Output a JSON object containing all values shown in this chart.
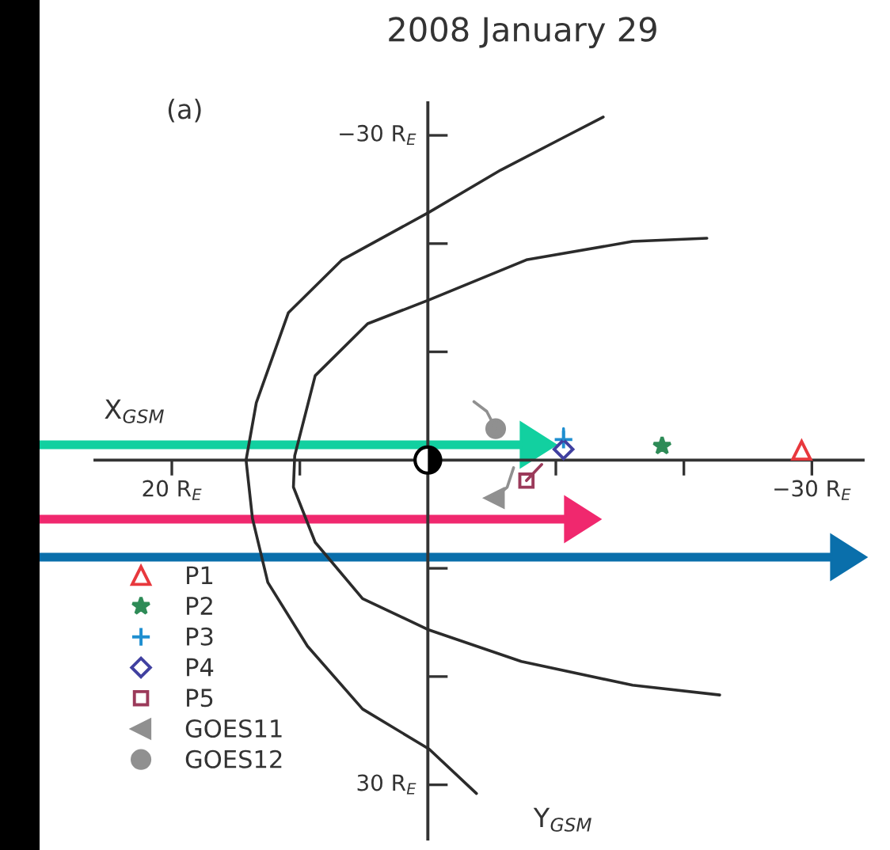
{
  "chart_data": {
    "type": "scatter",
    "title": "2008 January 29",
    "xlabel": "X$_{GSM}$",
    "ylabel": "Y$_{GSM}$",
    "annotations": [
      "(a)"
    ],
    "xlim": [
      26,
      -34
    ],
    "ylim": [
      35,
      -33
    ],
    "xticks": [
      {
        "value": 20,
        "label": "20 R$_{E}$"
      },
      {
        "value": 10,
        "label": null
      },
      {
        "value": -10,
        "label": null
      },
      {
        "value": -20,
        "label": null
      },
      {
        "value": -30,
        "label": "−30 R$_{E}$"
      }
    ],
    "yticks": [
      {
        "value": -30,
        "label": "−30 R$_{E}$"
      },
      {
        "value": -20,
        "label": null
      },
      {
        "value": -10,
        "label": null
      },
      {
        "value": 10,
        "label": null
      },
      {
        "value": 20,
        "label": null
      },
      {
        "value": 30,
        "label": "30 R$_{E}$"
      }
    ],
    "grid": false,
    "legend": "bottom left",
    "series": [
      {
        "type": "line",
        "color": "#2b2b2b",
        "x": [
          -13.7,
          -10.6,
          -5.7,
          -0.1,
          6.7,
          10.9,
          13.4,
          14.2,
          13.7,
          12.5,
          9.4,
          5.1,
          -0.1,
          -3.8
        ],
        "values": [
          -31.7,
          -29.8,
          -26.8,
          -22.9,
          -18.5,
          -13.6,
          -5.3,
          0,
          5.4,
          11.3,
          17.2,
          23.0,
          26.7,
          30.8
        ]
      },
      {
        "type": "line",
        "color": "#2b2b2b",
        "x": [
          -21.8,
          -16.0,
          -7.7,
          -0.1,
          4.7,
          8.8,
          10.4,
          10.5,
          8.8,
          5.1,
          -0.1,
          -7.3,
          -16.0,
          -22.8
        ],
        "values": [
          -20.5,
          -20.2,
          -18.5,
          -14.8,
          -12.6,
          -7.8,
          -0.4,
          2.5,
          7.6,
          12.8,
          15.7,
          18.6,
          20.8,
          21.7
        ]
      },
      {
        "type": "line",
        "color": "#909090",
        "x": [
          -3.6,
          -4.6,
          -5.3
        ],
        "values": [
          -5.4,
          -4.5,
          -2.9
        ]
      },
      {
        "type": "line",
        "color": "#909090",
        "x": [
          -6.7,
          -6.2,
          -5.2
        ],
        "values": [
          0.7,
          2.5,
          3.5
        ]
      },
      {
        "type": "line",
        "color": "#9b3a5a",
        "x": [
          -8.9,
          -7.7
        ],
        "values": [
          0.4,
          1.9
        ]
      },
      {
        "type": "line",
        "color": "#1f8fd0",
        "x": [
          -10.6,
          -10.6
        ],
        "values": [
          -2.9,
          -1.9
        ]
      },
      {
        "name": "P1",
        "color": "#e8383d",
        "marker": "triangle",
        "x": [
          -29.2
        ],
        "values": [
          -0.9
        ]
      },
      {
        "name": "P2",
        "color": "#2e8b57",
        "marker": "star",
        "x": [
          -18.3
        ],
        "values": [
          -1.3
        ]
      },
      {
        "name": "P3",
        "color": "#1f8fd0",
        "marker": "cross",
        "x": [
          -10.6
        ],
        "values": [
          -1.9
        ]
      },
      {
        "name": "P4",
        "color": "#4040a0",
        "marker": "diamond",
        "x": [
          -10.6
        ],
        "values": [
          -1.0
        ]
      },
      {
        "name": "P5",
        "color": "#9b3a5a",
        "marker": "square",
        "x": [
          -7.7
        ],
        "values": [
          1.9
        ]
      },
      {
        "name": "GOES11",
        "color": "#909090",
        "marker": "triangle-left",
        "x": [
          -5.2
        ],
        "values": [
          3.5
        ]
      },
      {
        "name": "GOES12",
        "color": "#909090",
        "marker": "circle",
        "x": [
          -5.3
        ],
        "values": [
          -2.9
        ]
      }
    ]
  }
}
